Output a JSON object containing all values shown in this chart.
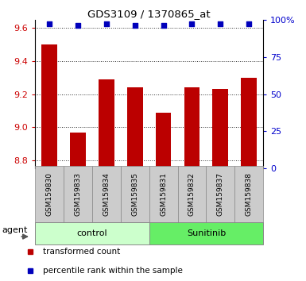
{
  "title": "GDS3109 / 1370865_at",
  "samples": [
    "GSM159830",
    "GSM159833",
    "GSM159834",
    "GSM159835",
    "GSM159831",
    "GSM159832",
    "GSM159837",
    "GSM159838"
  ],
  "bar_values": [
    9.5,
    8.97,
    9.29,
    9.24,
    9.09,
    9.24,
    9.23,
    9.3
  ],
  "percentile_values": [
    97,
    96,
    97,
    96,
    96,
    97,
    97,
    97
  ],
  "ylim_left": [
    8.75,
    9.65
  ],
  "ylim_right": [
    0,
    100
  ],
  "yticks_left": [
    8.8,
    9.0,
    9.2,
    9.4,
    9.6
  ],
  "yticks_right": [
    0,
    25,
    50,
    75,
    100
  ],
  "ytick_labels_right": [
    "0",
    "25",
    "50",
    "75",
    "100%"
  ],
  "bar_color": "#bb0000",
  "dot_color": "#0000bb",
  "bar_width": 0.55,
  "groups": [
    {
      "label": "control",
      "indices": [
        0,
        1,
        2,
        3
      ],
      "color": "#ccffcc",
      "dark_color": "#66dd66"
    },
    {
      "label": "Sunitinib",
      "indices": [
        4,
        5,
        6,
        7
      ],
      "color": "#66ee66",
      "dark_color": "#44cc44"
    }
  ],
  "agent_label": "agent",
  "legend_items": [
    {
      "color": "#bb0000",
      "label": "transformed count",
      "marker": "s"
    },
    {
      "color": "#0000bb",
      "label": "percentile rank within the sample",
      "marker": "s"
    }
  ],
  "tick_label_color_left": "#cc0000",
  "tick_label_color_right": "#0000cc",
  "grid_linestyle": "dotted",
  "grid_color": "#333333",
  "grid_linewidth": 0.7,
  "sample_box_color": "#cccccc",
  "sample_box_edge": "#888888",
  "figure_width": 3.85,
  "figure_height": 3.54,
  "dpi": 100
}
